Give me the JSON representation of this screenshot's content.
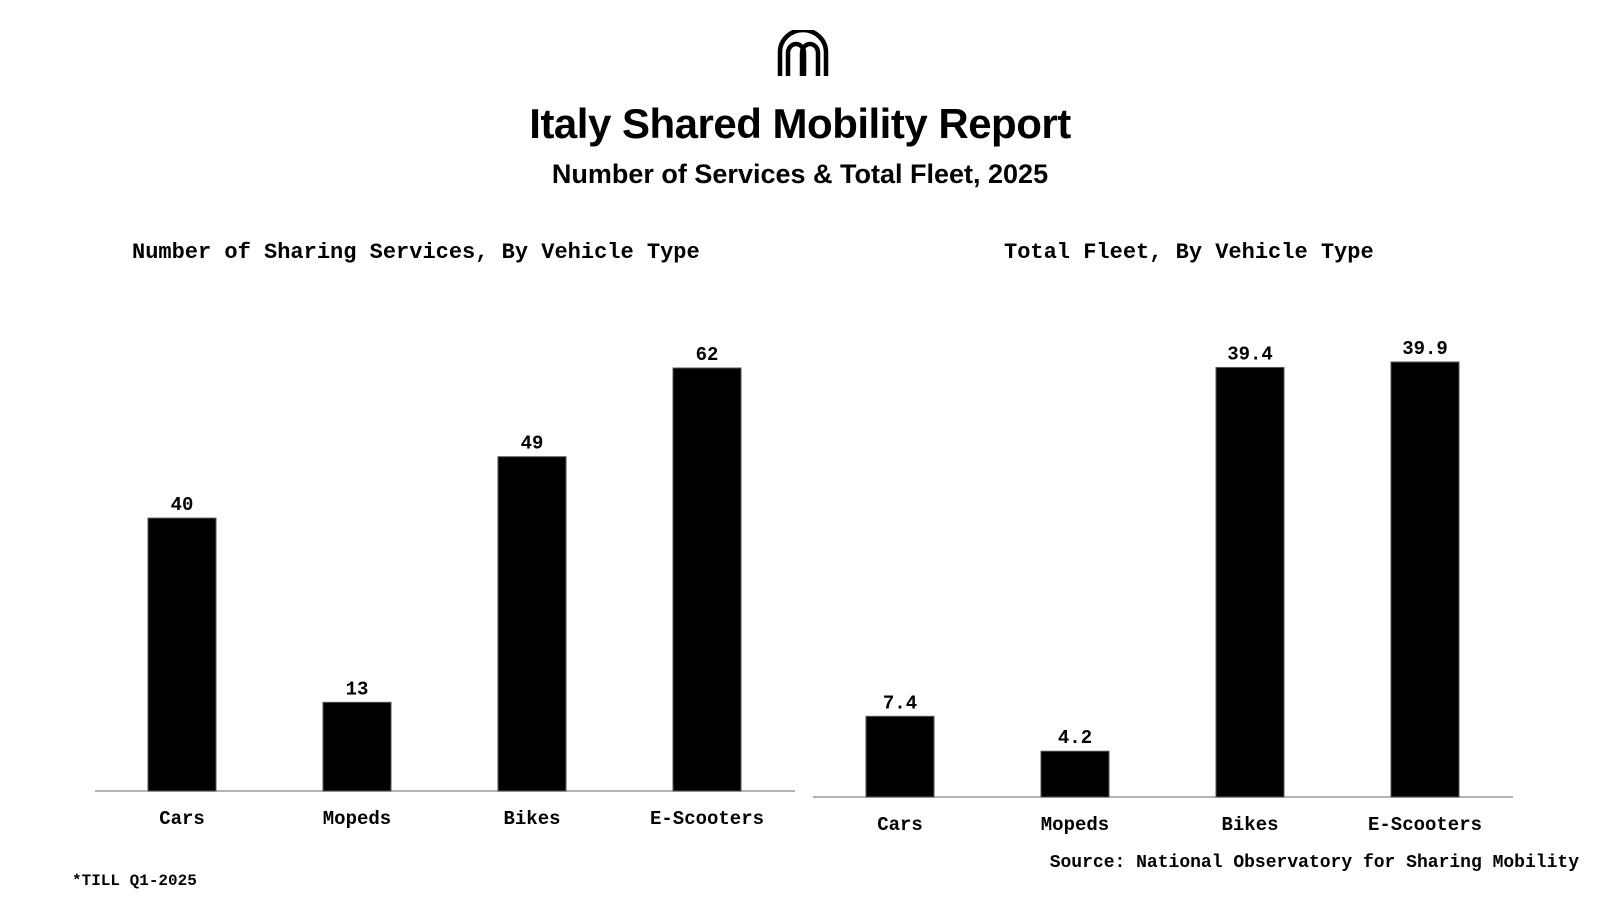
{
  "header": {
    "title": "Italy Shared Mobility Report",
    "subtitle": "Number of Services & Total Fleet, 2025"
  },
  "chart_data": [
    {
      "type": "bar",
      "title": "Number of Sharing Services, By Vehicle Type",
      "categories": [
        "Cars",
        "Mopeds",
        "Bikes",
        "E-Scooters"
      ],
      "values": [
        40,
        13,
        49,
        62
      ],
      "value_labels": [
        "40",
        "13",
        "49",
        "62"
      ],
      "ylim": [
        0,
        62
      ],
      "xlabel": "",
      "ylabel": "",
      "grid": false
    },
    {
      "type": "bar",
      "title": "Total Fleet, By Vehicle Type",
      "categories": [
        "Cars",
        "Mopeds",
        "Bikes",
        "E-Scooters"
      ],
      "values": [
        7.4,
        4.2,
        39.4,
        39.9
      ],
      "value_labels": [
        "7.4",
        "4.2",
        "39.4",
        "39.9"
      ],
      "ylim": [
        0,
        39.9
      ],
      "xlabel": "",
      "ylabel": "",
      "grid": false
    }
  ],
  "footer": {
    "footnote": "*TILL Q1-2025",
    "source": "Source: National Observatory for Sharing Mobility"
  },
  "colors": {
    "bar": "#000000",
    "axis": "#999999",
    "text": "#000000"
  }
}
